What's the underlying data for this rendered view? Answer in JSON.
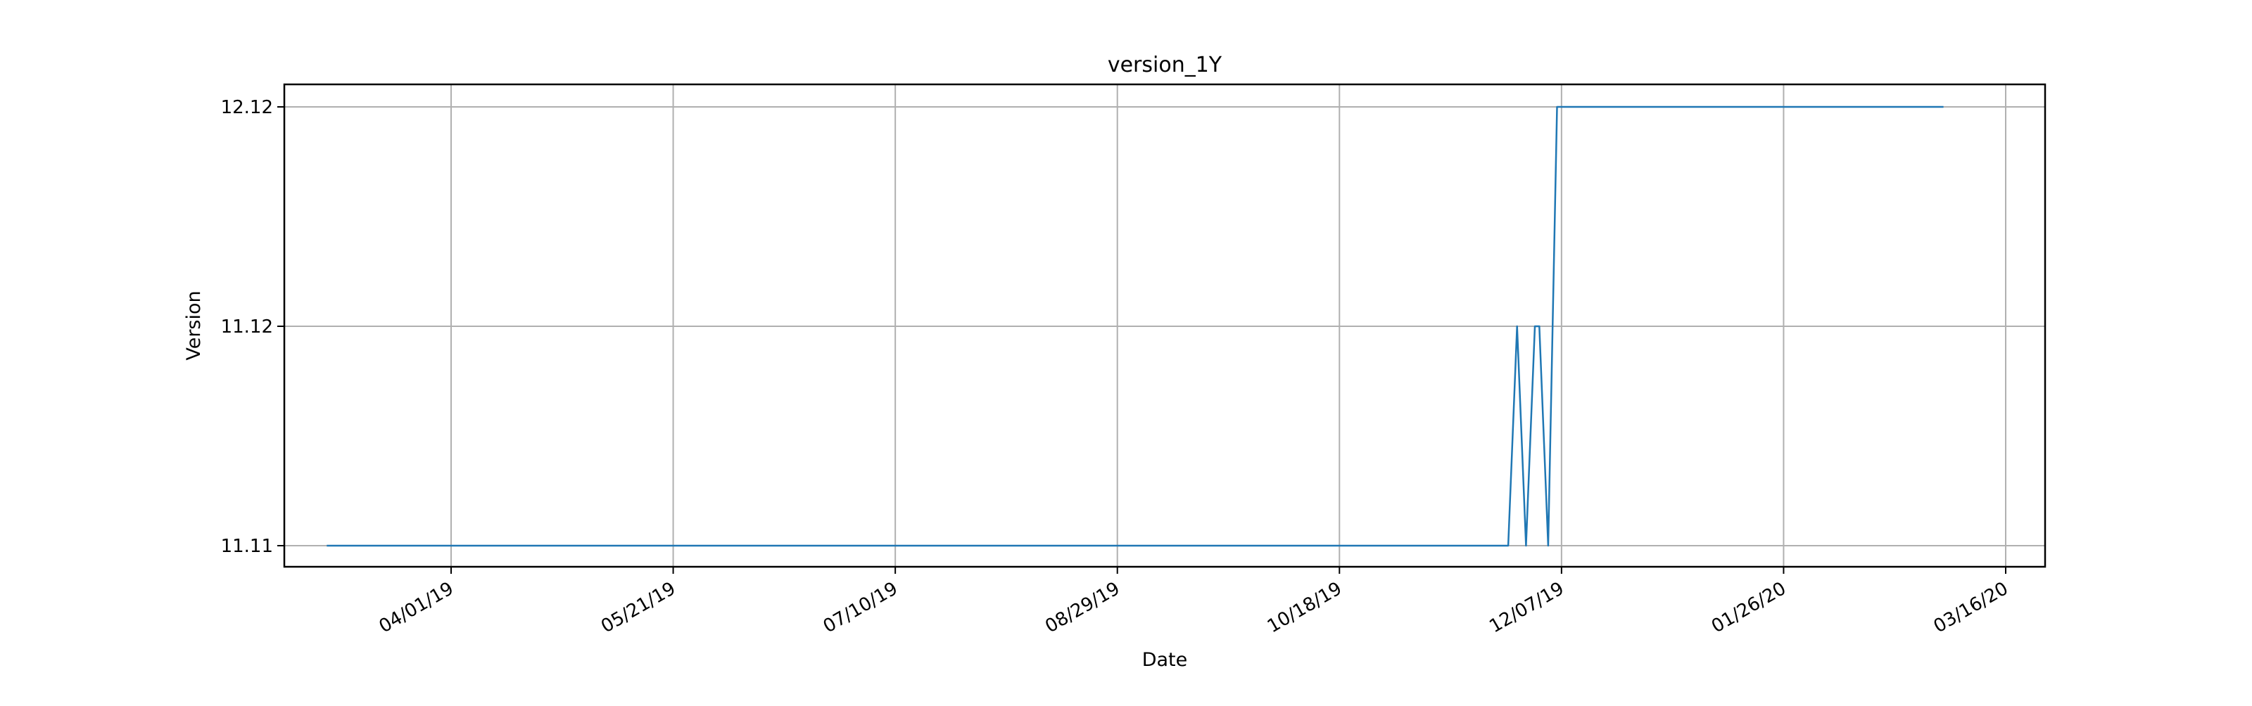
{
  "chart_data": {
    "type": "line",
    "title": "version_1Y",
    "xlabel": "Date",
    "ylabel": "Version",
    "x_tick_labels": [
      "04/01/19",
      "05/21/19",
      "07/10/19",
      "08/29/19",
      "10/18/19",
      "12/07/19",
      "01/26/20",
      "03/16/20"
    ],
    "y_tick_labels": [
      "11.11",
      "11.12",
      "12.12"
    ],
    "xlim": [
      "2019-02-05",
      "2020-03-16"
    ],
    "grid": true,
    "series": [
      {
        "color": "#1f77b4",
        "points": [
          {
            "x": "2019-03-04",
            "y": "11.11"
          },
          {
            "x": "2019-11-25",
            "y": "11.11"
          },
          {
            "x": "2019-11-27",
            "y": "11.12"
          },
          {
            "x": "2019-11-29",
            "y": "11.11"
          },
          {
            "x": "2019-12-01",
            "y": "11.12"
          },
          {
            "x": "2019-12-02",
            "y": "11.12"
          },
          {
            "x": "2019-12-04",
            "y": "11.11"
          },
          {
            "x": "2019-12-06",
            "y": "12.12"
          },
          {
            "x": "2020-03-02",
            "y": "12.12"
          }
        ]
      }
    ]
  }
}
